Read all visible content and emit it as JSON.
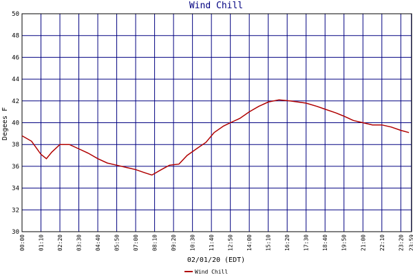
{
  "chart_data": {
    "type": "line",
    "title": "Wind Chill",
    "ylabel": "Degees F",
    "xlabel": "02/01/20 (EDT)",
    "xlim": [
      0,
      1440
    ],
    "ylim": [
      30,
      50
    ],
    "yticks": [
      30,
      32,
      34,
      36,
      38,
      40,
      42,
      44,
      46,
      48,
      50
    ],
    "xticks": [
      {
        "value": 0,
        "label": "00:00"
      },
      {
        "value": 70,
        "label": "01:10"
      },
      {
        "value": 140,
        "label": "02:20"
      },
      {
        "value": 210,
        "label": "03:30"
      },
      {
        "value": 280,
        "label": "04:40"
      },
      {
        "value": 350,
        "label": "05:50"
      },
      {
        "value": 420,
        "label": "07:00"
      },
      {
        "value": 490,
        "label": "08:10"
      },
      {
        "value": 560,
        "label": "09:20"
      },
      {
        "value": 630,
        "label": "10:30"
      },
      {
        "value": 700,
        "label": "11:40"
      },
      {
        "value": 770,
        "label": "12:50"
      },
      {
        "value": 840,
        "label": "14:00"
      },
      {
        "value": 910,
        "label": "15:10"
      },
      {
        "value": 980,
        "label": "16:20"
      },
      {
        "value": 1050,
        "label": "17:30"
      },
      {
        "value": 1120,
        "label": "18:40"
      },
      {
        "value": 1190,
        "label": "19:50"
      },
      {
        "value": 1260,
        "label": "21:00"
      },
      {
        "value": 1330,
        "label": "22:10"
      },
      {
        "value": 1400,
        "label": "23:20"
      },
      {
        "value": 1439,
        "label": "23:59"
      }
    ],
    "grid": true,
    "legend": "bottom",
    "series": [
      {
        "name": "Wind Chill",
        "color": "#b00000",
        "x": [
          0,
          35,
          70,
          90,
          110,
          140,
          175,
          210,
          245,
          280,
          315,
          350,
          385,
          420,
          455,
          480,
          515,
          545,
          580,
          610,
          650,
          680,
          710,
          745,
          770,
          805,
          840,
          875,
          910,
          950,
          990,
          1050,
          1090,
          1125,
          1160,
          1190,
          1225,
          1260,
          1295,
          1330,
          1365,
          1400,
          1430
        ],
        "values": [
          38.8,
          38.3,
          37.1,
          36.7,
          37.3,
          38.0,
          38.0,
          37.6,
          37.2,
          36.7,
          36.3,
          36.1,
          35.9,
          35.7,
          35.4,
          35.2,
          35.7,
          36.1,
          36.2,
          37.0,
          37.7,
          38.2,
          39.1,
          39.7,
          40.0,
          40.4,
          41.0,
          41.5,
          41.9,
          42.1,
          42.0,
          41.8,
          41.5,
          41.2,
          40.9,
          40.6,
          40.2,
          40.0,
          39.8,
          39.8,
          39.6,
          39.3,
          39.1
        ]
      }
    ]
  }
}
